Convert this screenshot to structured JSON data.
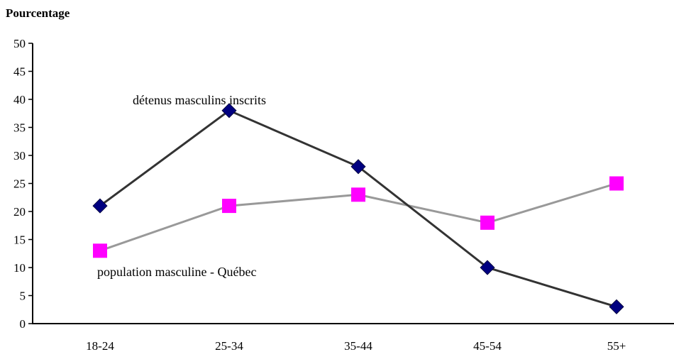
{
  "chart_data": {
    "type": "line",
    "ylabel": "Pourcentage",
    "xlabel": "",
    "title": "",
    "categories": [
      "18-24",
      "25-34",
      "35-44",
      "45-54",
      "55+"
    ],
    "ylim": [
      0,
      50
    ],
    "yticks": [
      0,
      5,
      10,
      15,
      20,
      25,
      30,
      35,
      40,
      45,
      50
    ],
    "grid": false,
    "legend": "none",
    "series": [
      {
        "name": "détenus masculins inscrits",
        "values": [
          21,
          38,
          28,
          10,
          3
        ],
        "line_color": "#333333",
        "marker": "diamond",
        "marker_color": "#000080"
      },
      {
        "name": "population masculine - Québec",
        "values": [
          13,
          21,
          23,
          18,
          25
        ],
        "line_color": "#999999",
        "marker": "square",
        "marker_color": "#ff00ff"
      }
    ]
  }
}
